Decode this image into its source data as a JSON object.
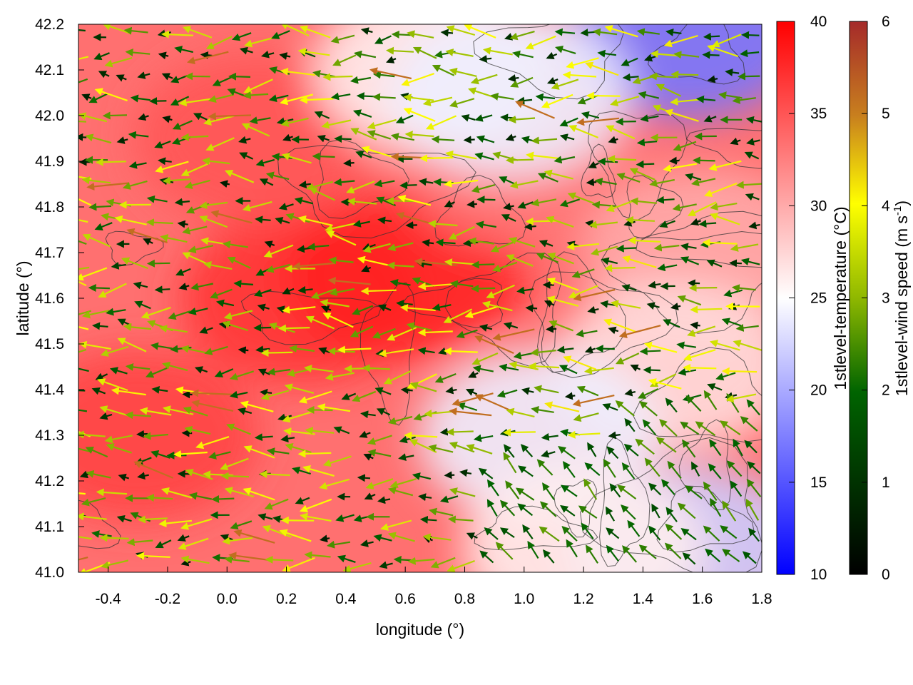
{
  "chart_data": {
    "type": "heatmap",
    "title": "",
    "xlabel": "longitude (°)",
    "ylabel": "latitude (°)",
    "xlim": [
      -0.5,
      1.8
    ],
    "ylim": [
      41.0,
      42.2
    ],
    "x_ticks": [
      "-0.4",
      "-0.2",
      "0.0",
      "0.2",
      "0.4",
      "0.6",
      "0.8",
      "1.0",
      "1.2",
      "1.4",
      "1.6",
      "1.8"
    ],
    "x_tick_values": [
      -0.4,
      -0.2,
      0.0,
      0.2,
      0.4,
      0.6,
      0.8,
      1.0,
      1.2,
      1.4,
      1.6,
      1.8
    ],
    "y_ticks": [
      "41.0",
      "41.1",
      "41.2",
      "41.3",
      "41.4",
      "41.5",
      "41.6",
      "41.7",
      "41.8",
      "41.9",
      "42.0",
      "42.1",
      "42.2"
    ],
    "y_tick_values": [
      41.0,
      41.1,
      41.2,
      41.3,
      41.4,
      41.5,
      41.6,
      41.7,
      41.8,
      41.9,
      42.0,
      42.1,
      42.2
    ],
    "temperature_colorbar": {
      "label": "1stlevel-temperature (°C)",
      "range": [
        10,
        40
      ],
      "ticks": [
        "10",
        "15",
        "20",
        "25",
        "30",
        "35",
        "40"
      ],
      "tick_values": [
        10,
        15,
        20,
        25,
        30,
        35,
        40
      ],
      "colors": [
        "#0000ff",
        "#ffffff",
        "#ff0000"
      ]
    },
    "wind_colorbar": {
      "label_main": "1stlevel-wind speed (m s",
      "label_sup": "-1",
      "label_end": ")",
      "range": [
        0,
        6
      ],
      "ticks": [
        "0",
        "1",
        "2",
        "3",
        "4",
        "5",
        "6"
      ],
      "tick_values": [
        0,
        1,
        2,
        3,
        4,
        5,
        6
      ],
      "colors": [
        "#000000",
        "#006400",
        "#8fb800",
        "#ffff00",
        "#c87f1e",
        "#a52a2a"
      ]
    },
    "temperature_regions": [
      {
        "lon": 0.25,
        "lat": 41.6,
        "temp": 37
      },
      {
        "lon": -0.3,
        "lat": 41.3,
        "temp": 36
      },
      {
        "lon": 0.6,
        "lat": 41.65,
        "temp": 38
      },
      {
        "lon": 0.1,
        "lat": 41.95,
        "temp": 35
      },
      {
        "lon": 1.0,
        "lat": 41.9,
        "temp": 33
      },
      {
        "lon": 1.6,
        "lat": 41.7,
        "temp": 30
      },
      {
        "lon": 1.5,
        "lat": 41.45,
        "temp": 27
      },
      {
        "lon": 1.05,
        "lat": 41.3,
        "temp": 24
      },
      {
        "lon": 1.55,
        "lat": 41.05,
        "temp": 22
      },
      {
        "lon": 1.2,
        "lat": 41.05,
        "temp": 26
      },
      {
        "lon": 0.7,
        "lat": 42.1,
        "temp": 26
      },
      {
        "lon": 1.55,
        "lat": 42.18,
        "temp": 17
      },
      {
        "lon": 0.95,
        "lat": 42.05,
        "temp": 24
      }
    ],
    "wind_regime": [
      {
        "region": "west",
        "direction": "westward",
        "speed": 2.5
      },
      {
        "region": "southeast",
        "direction": "northwestward",
        "speed": 2.0
      }
    ]
  }
}
